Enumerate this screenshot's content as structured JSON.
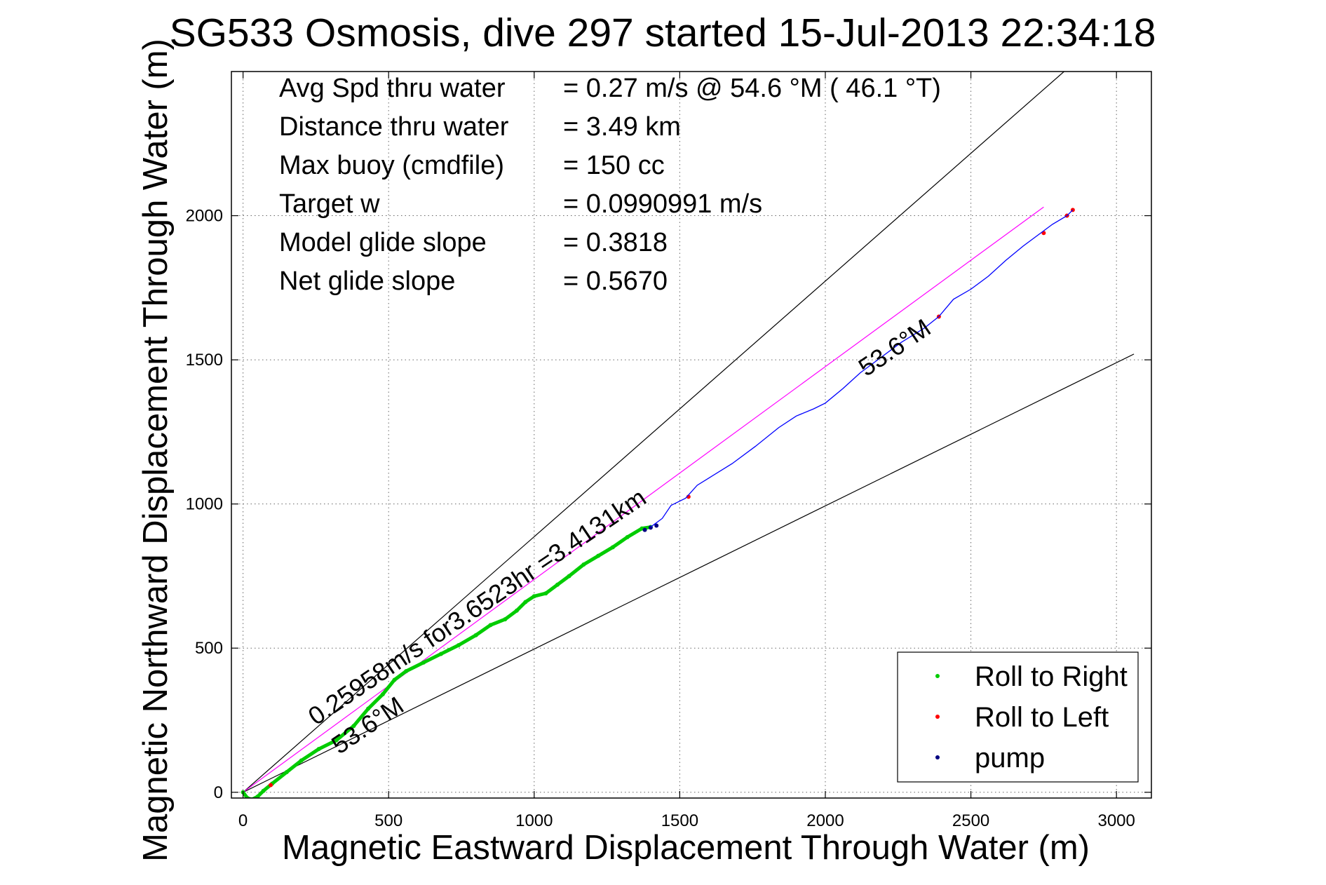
{
  "chart_data": {
    "type": "line",
    "title": "SG533 Osmosis, dive 297 started 15-Jul-2013 22:34:18",
    "xlabel": "Magnetic Eastward Displacement Through Water (m)",
    "ylabel": "Magnetic Northward Displacement Through Water (m)",
    "xlim": [
      -40,
      3120
    ],
    "ylim": [
      -20,
      2500
    ],
    "xticks": [
      0,
      500,
      1000,
      1500,
      2000,
      2500,
      3000
    ],
    "yticks": [
      0,
      500,
      1000,
      1500,
      2000
    ],
    "xtick_labels": [
      "0",
      "500",
      "1000",
      "1500",
      "2000",
      "2500",
      "3000"
    ],
    "ytick_labels": [
      "0",
      "500",
      "1000",
      "1500",
      "2000"
    ],
    "grid": true,
    "legend_position": "bottom-right",
    "stats": [
      {
        "label": "Avg Spd thru water",
        "value": "=  0.27 m/s @  54.6 °M ( 46.1 °T)"
      },
      {
        "label": "Distance thru water",
        "value": "=  3.49 km"
      },
      {
        "label": "Max buoy (cmdfile)",
        "value": "= 150 cc"
      },
      {
        "label": "Target w",
        "value": "= 0.0990991 m/s"
      },
      {
        "label": "Model glide slope",
        "value": "= 0.3818"
      },
      {
        "label": "Net glide slope",
        "value": "= 0.5670"
      }
    ],
    "annotations": [
      {
        "text": "0.25958m/s for3.6523hr =3.4131km",
        "x": 250,
        "y": 230,
        "angle_deg": 34
      },
      {
        "text": "53.6°M",
        "x": 330,
        "y": 130,
        "angle_deg": 34
      },
      {
        "text": "53.6°M",
        "x": 2140,
        "y": 1440,
        "angle_deg": 34
      }
    ],
    "reference_lines": [
      {
        "name": "upper bound",
        "color": "#000000",
        "x": [
          0,
          2820
        ],
        "y": [
          0,
          2500
        ]
      },
      {
        "name": "lower bound",
        "color": "#000000",
        "x": [
          0,
          3060
        ],
        "y": [
          0,
          1520
        ]
      },
      {
        "name": "course line",
        "color": "#ff00ff",
        "x": [
          0,
          2750
        ],
        "y": [
          0,
          2030
        ]
      }
    ],
    "series": [
      {
        "name": "Roll to Right",
        "color": "#00cc00",
        "marker": "dot",
        "x": [
          0,
          15,
          30,
          50,
          70,
          100,
          150,
          200,
          260,
          320,
          380,
          430,
          480,
          520,
          560,
          620,
          680,
          740,
          800,
          850,
          900,
          940,
          970,
          1000,
          1040,
          1080,
          1120,
          1170,
          1220,
          1270,
          1320,
          1370,
          1400
        ],
        "y": [
          0,
          -20,
          -25,
          -15,
          5,
          30,
          70,
          110,
          150,
          180,
          230,
          290,
          340,
          390,
          420,
          450,
          480,
          510,
          545,
          580,
          600,
          630,
          660,
          680,
          690,
          720,
          750,
          790,
          820,
          850,
          885,
          915,
          920
        ]
      },
      {
        "name": "Roll to Left",
        "color": "#ff0000",
        "marker": "dot",
        "x": [
          95,
          1530,
          2390,
          2750,
          2830,
          2850
        ],
        "y": [
          25,
          1025,
          1650,
          1940,
          2000,
          2020
        ]
      },
      {
        "name": "pump",
        "color": "#000080",
        "marker": "dot",
        "x": [
          1380,
          1400,
          1420
        ],
        "y": [
          910,
          918,
          925
        ]
      },
      {
        "name": "track",
        "color": "#0000ff",
        "marker": "none",
        "x": [
          1400,
          1440,
          1470,
          1480,
          1520,
          1560,
          1600,
          1680,
          1760,
          1840,
          1900,
          1960,
          2000,
          2060,
          2120,
          2180,
          2260,
          2340,
          2390,
          2440,
          2500,
          2560,
          2620,
          2680,
          2740,
          2780,
          2830,
          2850
        ],
        "y": [
          920,
          950,
          995,
          1000,
          1020,
          1065,
          1090,
          1140,
          1200,
          1265,
          1305,
          1330,
          1350,
          1400,
          1455,
          1500,
          1560,
          1610,
          1650,
          1710,
          1745,
          1790,
          1845,
          1895,
          1940,
          1970,
          2000,
          2020
        ]
      }
    ],
    "legend": [
      {
        "label": "Roll to Right",
        "color": "#00cc00"
      },
      {
        "label": "Roll to Left",
        "color": "#ff0000"
      },
      {
        "label": "pump",
        "color": "#000080"
      }
    ]
  }
}
